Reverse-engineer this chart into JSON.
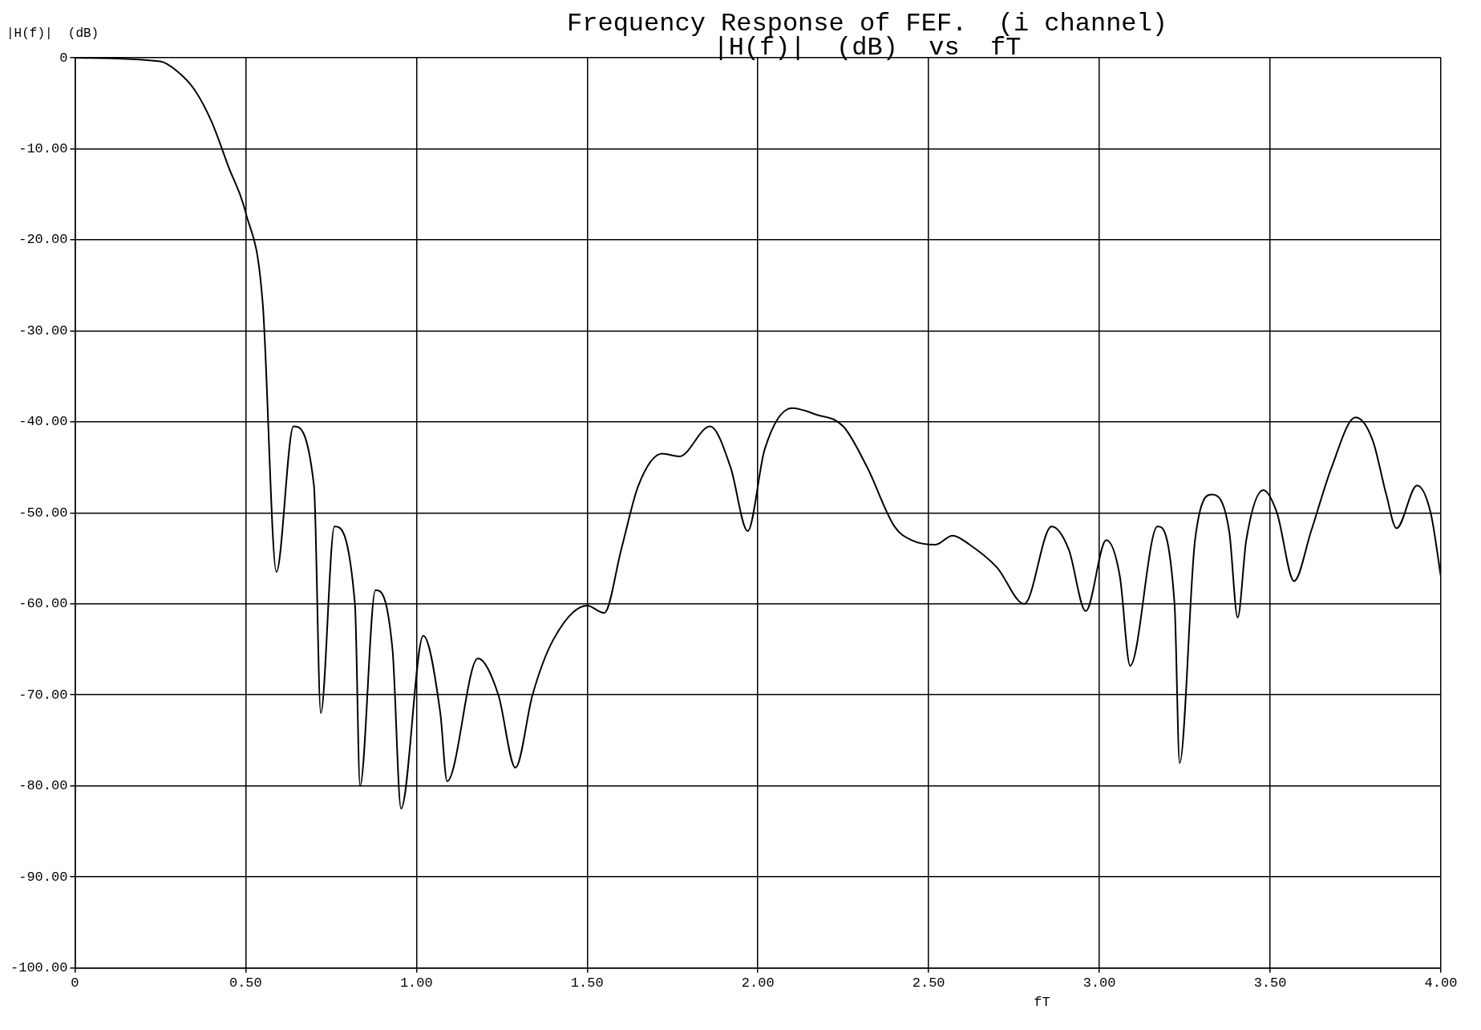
{
  "chart_data": {
    "type": "line",
    "title": "Frequency Response of FEF.  (i channel)",
    "subtitle": "|H(f)|  (dB)  vs  fT",
    "xlabel": "fT",
    "ylabel": "|H(f)|  (dB)",
    "x": [
      0,
      0.25,
      0.3,
      0.35,
      0.4,
      0.45,
      0.5,
      0.55,
      0.59,
      0.64,
      0.7,
      0.72,
      0.76,
      0.82,
      0.835,
      0.88,
      0.93,
      0.955,
      1.02,
      1.07,
      1.09,
      1.18,
      1.24,
      1.29,
      1.34,
      1.4,
      1.5,
      1.55,
      1.6,
      1.65,
      1.72,
      1.77,
      1.86,
      1.92,
      1.97,
      2.02,
      2.1,
      2.17,
      2.25,
      2.32,
      2.4,
      2.45,
      2.52,
      2.57,
      2.62,
      2.7,
      2.78,
      2.86,
      2.91,
      2.96,
      3.02,
      3.06,
      3.09,
      3.17,
      3.22,
      3.235,
      3.28,
      3.33,
      3.38,
      3.405,
      3.43,
      3.48,
      3.52,
      3.57,
      3.62,
      3.68,
      3.75,
      3.8,
      3.84,
      3.87,
      3.93,
      3.97,
      4
    ],
    "series": [
      {
        "color": "#000000",
        "values": [
          0,
          -0.4,
          -1.5,
          -3.5,
          -7,
          -12,
          -17,
          -27,
          -56.5,
          -40.5,
          -47,
          -72,
          -51.5,
          -60,
          -80,
          -58.5,
          -65,
          -82.5,
          -63.5,
          -72,
          -79.5,
          -66,
          -70,
          -78,
          -70,
          -64,
          -60.2,
          -61,
          -54,
          -47,
          -43.5,
          -43.8,
          -40.5,
          -45,
          -52,
          -43,
          -38.5,
          -39.2,
          -40.5,
          -45,
          -51.5,
          -53,
          -53.5,
          -52.5,
          -53.5,
          -56,
          -60,
          -51.5,
          -54,
          -60.8,
          -53,
          -57,
          -66.8,
          -51.5,
          -60,
          -77.5,
          -53,
          -48,
          -52,
          -61.5,
          -53,
          -47.5,
          -50,
          -57.5,
          -52,
          -45,
          -39.5,
          -42,
          -48,
          -51.7,
          -47,
          -50,
          -57
        ]
      }
    ],
    "xlim": [
      0,
      4
    ],
    "xticks": [
      0,
      {
        "value": 0.5,
        "label": "0.50"
      },
      {
        "value": 1,
        "label": "1.00"
      },
      {
        "value": 1.5,
        "label": "1.50"
      },
      {
        "value": 2,
        "label": "2.00"
      },
      {
        "value": 2.5,
        "label": "2.50"
      },
      {
        "value": 3,
        "label": "3.00"
      },
      {
        "value": 3.5,
        "label": "3.50"
      },
      {
        "value": 4,
        "label": "4.00"
      }
    ],
    "ylim": [
      -100,
      0
    ],
    "yticks": [
      0,
      {
        "value": -10,
        "label": "-10.00"
      },
      {
        "value": -20,
        "label": "-20.00"
      },
      {
        "value": -30,
        "label": "-30.00"
      },
      {
        "value": -40,
        "label": "-40.00"
      },
      {
        "value": -50,
        "label": "-50.00"
      },
      {
        "value": -60,
        "label": "-60.00"
      },
      {
        "value": -70,
        "label": "-70.00"
      },
      {
        "value": -80,
        "label": "-80.00"
      },
      {
        "value": -90,
        "label": "-90.00"
      },
      {
        "value": -100,
        "label": "-100.00"
      }
    ],
    "grid": true,
    "legend": false,
    "marker": "none",
    "line_style": "solid"
  }
}
